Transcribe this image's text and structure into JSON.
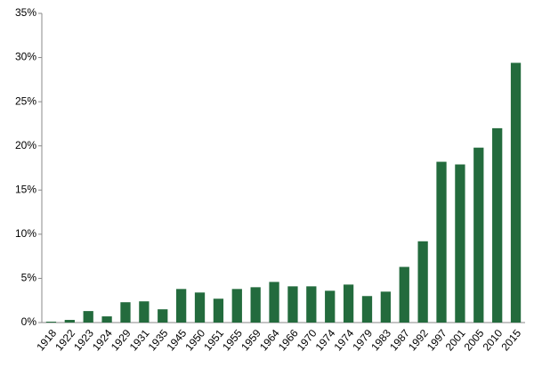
{
  "chart_data": {
    "type": "bar",
    "categories": [
      "1918",
      "1922",
      "1923",
      "1924",
      "1929",
      "1931",
      "1935",
      "1945",
      "1950",
      "1951",
      "1955",
      "1959",
      "1964",
      "1966",
      "1970",
      "1974",
      "1974",
      "1979",
      "1983",
      "1987",
      "1992",
      "1997",
      "2001",
      "2005",
      "2010",
      "2015"
    ],
    "values": [
      0.1,
      0.3,
      1.3,
      0.7,
      2.3,
      2.4,
      1.5,
      3.8,
      3.4,
      2.7,
      3.8,
      4.0,
      4.6,
      4.1,
      4.1,
      3.6,
      4.3,
      3.0,
      3.5,
      6.3,
      9.2,
      18.2,
      17.9,
      19.8,
      22.0,
      29.4
    ],
    "color": "#236b3d",
    "ylim": [
      0,
      35
    ],
    "yticks": [
      {
        "value": 0,
        "label": "0%"
      },
      {
        "value": 5,
        "label": "5%"
      },
      {
        "value": 10,
        "label": "10%"
      },
      {
        "value": 15,
        "label": "15%"
      },
      {
        "value": 20,
        "label": "20%"
      },
      {
        "value": 25,
        "label": "25%"
      },
      {
        "value": 30,
        "label": "30%"
      },
      {
        "value": 35,
        "label": "35%"
      }
    ],
    "grid": false
  }
}
